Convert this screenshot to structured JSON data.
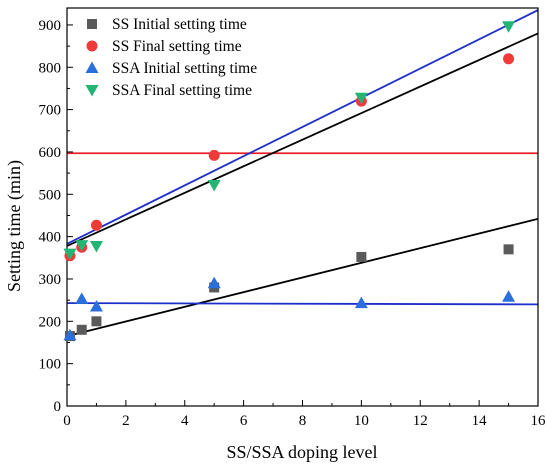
{
  "chart_data": {
    "type": "scatter",
    "title": "",
    "xlabel": "SS/SSA doping level",
    "ylabel": "Setting time (min)",
    "xlim": [
      0,
      16
    ],
    "ylim": [
      0,
      940
    ],
    "xticks": [
      0,
      2,
      4,
      6,
      8,
      10,
      12,
      14,
      16
    ],
    "yticks": [
      0,
      100,
      200,
      300,
      400,
      500,
      600,
      700,
      800,
      900
    ],
    "xtick_labels": [
      "0",
      "2",
      "4",
      "6",
      "8",
      "10",
      "12",
      "14",
      "16"
    ],
    "ytick_labels": [
      "0",
      "100",
      "200",
      "300",
      "400",
      "500",
      "600",
      "700",
      "800",
      "900"
    ],
    "grid": false,
    "legend_position": "top-left",
    "series": [
      {
        "name": "SS Initial setting time",
        "marker": "square",
        "color": "#5a5a5a",
        "x": [
          0.1,
          0.5,
          1,
          5,
          10,
          15
        ],
        "y": [
          165,
          180,
          200,
          280,
          352,
          370
        ]
      },
      {
        "name": "SS Final setting time",
        "marker": "circle",
        "color": "#ef3a3a",
        "x": [
          0.1,
          0.5,
          1,
          5,
          10,
          15
        ],
        "y": [
          355,
          375,
          427,
          592,
          720,
          820
        ]
      },
      {
        "name": "SSA Initial setting time",
        "marker": "triangle-up",
        "color": "#2a6fdb",
        "x": [
          0.1,
          0.5,
          1,
          5,
          10,
          15
        ],
        "y": [
          167,
          253,
          235,
          290,
          243,
          258
        ]
      },
      {
        "name": "SSA Final setting time",
        "marker": "triangle-down",
        "color": "#22b573",
        "x": [
          0.1,
          0.5,
          1,
          5,
          10,
          15
        ],
        "y": [
          360,
          380,
          378,
          522,
          728,
          897
        ]
      }
    ],
    "fit_lines": [
      {
        "of": "SS Initial setting time",
        "color": "#000000",
        "x": [
          0,
          16
        ],
        "y": [
          165,
          442
        ]
      },
      {
        "of": "SS Final setting time",
        "color": "#e8212b",
        "x": [
          0,
          16
        ],
        "y": [
          597,
          597
        ]
      },
      {
        "of": "SSA Initial setting time",
        "color": "#1d2fc9",
        "x": [
          0,
          16
        ],
        "y": [
          243,
          240
        ]
      },
      {
        "of": "SSA Final setting time",
        "color": "#1d2fc9",
        "x": [
          0,
          16
        ],
        "y": [
          383,
          935
        ]
      },
      {
        "of": "SSA Final setting time",
        "color": "#000000",
        "x": [
          0,
          16
        ],
        "y": [
          378,
          880
        ]
      }
    ]
  }
}
